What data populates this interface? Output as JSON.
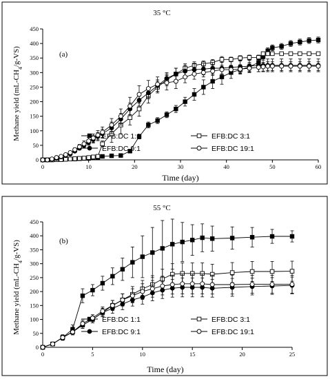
{
  "chart_data": [
    {
      "type": "line",
      "title": "35 °C",
      "panel_label": "(a)",
      "xlabel": "Time (day)",
      "ylabel": "Methane yield (mL-CH4/g-VS)",
      "xlim": [
        0,
        60
      ],
      "ylim": [
        0,
        450
      ],
      "xticks": [
        0,
        10,
        20,
        30,
        40,
        50,
        60
      ],
      "yticks": [
        0,
        50,
        100,
        150,
        200,
        250,
        300,
        350,
        400,
        450
      ],
      "grid": false,
      "legend_position": "bottom",
      "series": [
        {
          "name": "EFB:DC 1:1",
          "marker": "filled-square",
          "x": [
            0,
            1,
            2,
            3,
            4,
            5,
            6,
            7,
            8,
            9,
            10,
            11,
            12,
            13,
            15,
            17,
            19,
            21,
            23,
            25,
            27,
            29,
            31,
            33,
            35,
            37,
            39,
            41,
            43,
            45,
            47,
            48,
            49,
            50,
            52,
            54,
            56,
            58,
            60
          ],
          "y": [
            0,
            0,
            0,
            1,
            1,
            2,
            3,
            3,
            4,
            5,
            5,
            8,
            8,
            12,
            14,
            15,
            30,
            80,
            120,
            135,
            155,
            175,
            200,
            225,
            250,
            270,
            285,
            300,
            310,
            320,
            335,
            355,
            375,
            385,
            390,
            400,
            405,
            410,
            412
          ],
          "err": [
            0,
            0,
            0,
            1,
            1,
            1,
            1,
            1,
            1,
            1,
            1,
            2,
            2,
            3,
            3,
            3,
            5,
            8,
            10,
            10,
            10,
            12,
            15,
            20,
            25,
            25,
            25,
            20,
            15,
            15,
            12,
            12,
            10,
            10,
            10,
            10,
            10,
            10,
            10
          ]
        },
        {
          "name": "EFB:DC 3:1",
          "marker": "open-square",
          "x": [
            0,
            1,
            2,
            3,
            4,
            5,
            6,
            7,
            8,
            9,
            10,
            11,
            12,
            13,
            15,
            17,
            19,
            21,
            23,
            25,
            27,
            29,
            31,
            33,
            35,
            37,
            39,
            41,
            43,
            45,
            47,
            48,
            49,
            50,
            52,
            54,
            56,
            58,
            60
          ],
          "y": [
            0,
            0,
            0,
            1,
            1,
            2,
            3,
            4,
            5,
            6,
            8,
            10,
            12,
            55,
            90,
            120,
            145,
            175,
            220,
            250,
            275,
            295,
            315,
            325,
            330,
            335,
            345,
            345,
            350,
            352,
            352,
            365,
            365,
            365,
            365,
            365,
            365,
            365,
            365
          ],
          "err": [
            0,
            0,
            0,
            1,
            1,
            1,
            1,
            1,
            2,
            2,
            2,
            3,
            4,
            10,
            30,
            30,
            25,
            25,
            25,
            20,
            20,
            20,
            15,
            12,
            10,
            10,
            10,
            8,
            8,
            8,
            8,
            5,
            5,
            5,
            5,
            5,
            5,
            5,
            5
          ]
        },
        {
          "name": "EFB:DC 9:1",
          "marker": "filled-circle",
          "x": [
            0,
            1,
            2,
            3,
            4,
            5,
            6,
            7,
            8,
            9,
            10,
            11,
            12,
            13,
            15,
            17,
            19,
            21,
            23,
            25,
            27,
            29,
            31,
            33,
            35,
            37,
            39,
            41,
            43,
            45,
            47,
            48,
            49,
            50,
            52,
            54,
            56,
            58,
            60
          ],
          "y": [
            0,
            0,
            2,
            5,
            10,
            15,
            20,
            30,
            40,
            50,
            60,
            70,
            80,
            90,
            110,
            140,
            175,
            205,
            230,
            255,
            280,
            295,
            305,
            310,
            312,
            315,
            315,
            318,
            320,
            322,
            325,
            325,
            325,
            325,
            325,
            325,
            325,
            325,
            325
          ],
          "err": [
            0,
            0,
            1,
            2,
            2,
            3,
            4,
            5,
            6,
            8,
            10,
            12,
            14,
            15,
            20,
            20,
            20,
            20,
            20,
            20,
            20,
            20,
            20,
            20,
            20,
            20,
            20,
            20,
            20,
            20,
            22,
            22,
            22,
            22,
            22,
            22,
            22,
            22,
            22
          ]
        },
        {
          "name": "EFB:DC 19:1",
          "marker": "open-circle",
          "x": [
            0,
            1,
            2,
            3,
            4,
            5,
            6,
            7,
            8,
            9,
            10,
            11,
            12,
            13,
            15,
            17,
            19,
            21,
            23,
            25,
            27,
            29,
            31,
            33,
            35,
            37,
            39,
            41,
            43,
            45,
            47,
            48,
            49,
            50,
            52,
            54,
            56,
            58,
            60
          ],
          "y": [
            0,
            0,
            3,
            8,
            12,
            18,
            25,
            35,
            45,
            55,
            65,
            75,
            85,
            95,
            120,
            150,
            185,
            225,
            245,
            260,
            265,
            270,
            285,
            295,
            300,
            305,
            310,
            310,
            312,
            315,
            318,
            320,
            322,
            322,
            322,
            322,
            322,
            322,
            322
          ],
          "err": [
            0,
            0,
            1,
            2,
            3,
            4,
            5,
            6,
            8,
            10,
            12,
            14,
            16,
            18,
            22,
            25,
            30,
            30,
            28,
            25,
            25,
            25,
            20,
            18,
            15,
            15,
            15,
            15,
            15,
            15,
            15,
            15,
            15,
            15,
            15,
            15,
            15,
            15,
            15
          ]
        }
      ]
    },
    {
      "type": "line",
      "title": "55 °C",
      "panel_label": "(b)",
      "xlabel": "Time (day)",
      "ylabel": "Methane yield (mL-CH4/g-VS)",
      "xlim": [
        0,
        25
      ],
      "ylim": [
        0,
        450
      ],
      "xticks": [
        0,
        5,
        10,
        15,
        20,
        25
      ],
      "yticks": [
        0,
        50,
        100,
        150,
        200,
        250,
        300,
        350,
        400,
        450
      ],
      "grid": false,
      "legend_position": "bottom",
      "series": [
        {
          "name": "EFB:DC 1:1",
          "marker": "filled-square",
          "x": [
            0,
            1,
            2,
            3,
            4,
            5,
            6,
            7,
            8,
            9,
            10,
            11,
            12,
            13,
            14,
            15,
            16,
            17,
            19,
            21,
            23,
            25
          ],
          "y": [
            0,
            12,
            35,
            65,
            185,
            205,
            230,
            255,
            280,
            305,
            325,
            340,
            355,
            370,
            378,
            385,
            393,
            390,
            392,
            395,
            398,
            398
          ],
          "err": [
            0,
            5,
            10,
            15,
            25,
            20,
            25,
            30,
            40,
            55,
            75,
            90,
            100,
            90,
            70,
            55,
            50,
            45,
            40,
            35,
            25,
            20
          ]
        },
        {
          "name": "EFB:DC 3:1",
          "marker": "open-square",
          "x": [
            0,
            1,
            2,
            3,
            4,
            5,
            6,
            7,
            8,
            9,
            10,
            11,
            12,
            13,
            14,
            15,
            16,
            17,
            19,
            21,
            23,
            25
          ],
          "y": [
            0,
            12,
            35,
            55,
            80,
            100,
            125,
            150,
            170,
            190,
            210,
            225,
            245,
            262,
            265,
            265,
            265,
            262,
            268,
            272,
            272,
            273
          ],
          "err": [
            0,
            4,
            8,
            10,
            12,
            12,
            15,
            18,
            22,
            28,
            30,
            32,
            35,
            38,
            38,
            38,
            38,
            36,
            36,
            36,
            36,
            36
          ]
        },
        {
          "name": "EFB:DC 9:1",
          "marker": "filled-circle",
          "x": [
            0,
            1,
            2,
            3,
            4,
            5,
            6,
            7,
            8,
            9,
            10,
            11,
            12,
            13,
            14,
            15,
            16,
            17,
            19,
            21,
            23,
            25
          ],
          "y": [
            0,
            12,
            35,
            55,
            80,
            100,
            125,
            140,
            155,
            170,
            180,
            195,
            205,
            212,
            215,
            215,
            215,
            212,
            215,
            218,
            220,
            222
          ],
          "err": [
            0,
            4,
            8,
            10,
            12,
            12,
            15,
            18,
            20,
            22,
            25,
            28,
            30,
            32,
            34,
            34,
            34,
            32,
            32,
            30,
            30,
            30
          ]
        },
        {
          "name": "EFB:DC 19:1",
          "marker": "open-circle",
          "x": [
            0,
            1,
            2,
            3,
            4,
            5,
            6,
            7,
            8,
            9,
            10,
            11,
            12,
            13,
            14,
            15,
            16,
            17,
            19,
            21,
            23,
            25
          ],
          "y": [
            0,
            12,
            35,
            55,
            85,
            105,
            130,
            150,
            170,
            185,
            200,
            210,
            220,
            225,
            228,
            228,
            228,
            225,
            225,
            226,
            226,
            226
          ],
          "err": [
            0,
            4,
            8,
            10,
            12,
            12,
            15,
            18,
            22,
            25,
            28,
            30,
            32,
            34,
            36,
            36,
            36,
            34,
            34,
            32,
            32,
            32
          ]
        }
      ]
    }
  ]
}
